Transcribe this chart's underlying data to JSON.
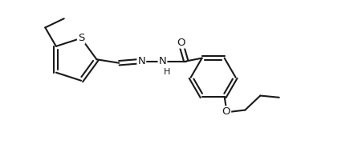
{
  "bg_color": "#ffffff",
  "line_color": "#1a1a1a",
  "line_width": 1.5,
  "font_size": 9.5,
  "figsize": [
    4.51,
    1.8
  ],
  "dpi": 100,
  "xlim": [
    0,
    10
  ],
  "ylim": [
    0,
    4
  ]
}
